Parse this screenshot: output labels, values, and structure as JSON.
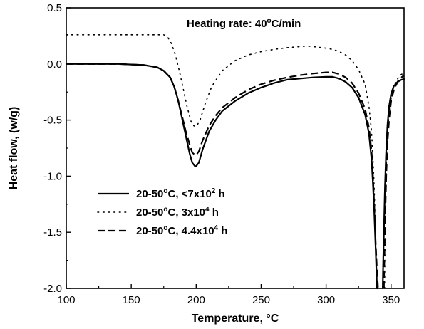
{
  "chart_data": {
    "type": "line",
    "title": "",
    "annotation": {
      "prefix": "Heating rate: 40",
      "sup": "o",
      "suffix": "C/min"
    },
    "xlabel": "Temperature, °C",
    "ylabel": "Heat flow, (w/g)",
    "xlim": [
      100,
      360
    ],
    "ylim": [
      -2.0,
      0.5
    ],
    "x_ticks": [
      100,
      150,
      200,
      250,
      300,
      350
    ],
    "y_ticks": [
      0.5,
      0.0,
      -0.5,
      -1.0,
      -1.5,
      -2.0
    ],
    "x_tick_labels": [
      "100",
      "150",
      "200",
      "250",
      "300",
      "350"
    ],
    "y_tick_labels": [
      "0.5",
      "0.0",
      "-0.5",
      "-1.0",
      "-1.5",
      "-2.0"
    ],
    "grid": false,
    "legend_position": "lower-left",
    "series": [
      {
        "legend": {
          "prefix": "20-50",
          "deg": "o",
          "mid": "C, <7x10",
          "exp": "2",
          "suffix": " h"
        },
        "style": "solid",
        "x": [
          100,
          120,
          140,
          160,
          170,
          175,
          180,
          183,
          186,
          189,
          192,
          195,
          197,
          199,
          200,
          202,
          205,
          210,
          215,
          220,
          230,
          240,
          250,
          260,
          270,
          280,
          290,
          300,
          305,
          310,
          315,
          320,
          325,
          330,
          333,
          335,
          336,
          337,
          338,
          338.6,
          339.2
        ],
        "y": [
          0.0,
          0.0,
          0.0,
          -0.01,
          -0.03,
          -0.06,
          -0.12,
          -0.2,
          -0.32,
          -0.48,
          -0.64,
          -0.8,
          -0.88,
          -0.91,
          -0.91,
          -0.88,
          -0.76,
          -0.6,
          -0.5,
          -0.42,
          -0.33,
          -0.26,
          -0.21,
          -0.17,
          -0.14,
          -0.13,
          -0.12,
          -0.115,
          -0.115,
          -0.13,
          -0.16,
          -0.21,
          -0.3,
          -0.45,
          -0.62,
          -0.85,
          -1.05,
          -1.3,
          -1.6,
          -1.8,
          -2.0
        ]
      },
      {
        "legend": {
          "prefix": "20-50",
          "deg": "o",
          "mid": "C,  3x10",
          "exp": "4",
          "suffix": " h"
        },
        "style": "dotted",
        "x": [
          100,
          120,
          140,
          160,
          170,
          175,
          178,
          181,
          184,
          187,
          190,
          193,
          196,
          198,
          200,
          203,
          207,
          212,
          220,
          230,
          240,
          250,
          260,
          270,
          280,
          285,
          290,
          300,
          305,
          310,
          315,
          320,
          325,
          330,
          333,
          335,
          336,
          337,
          338,
          339
        ],
        "y": [
          0.26,
          0.26,
          0.26,
          0.26,
          0.26,
          0.26,
          0.24,
          0.18,
          0.08,
          -0.06,
          -0.22,
          -0.38,
          -0.51,
          -0.55,
          -0.56,
          -0.5,
          -0.35,
          -0.2,
          -0.06,
          0.03,
          0.08,
          0.11,
          0.13,
          0.145,
          0.155,
          0.16,
          0.155,
          0.14,
          0.13,
          0.11,
          0.08,
          0.03,
          -0.05,
          -0.18,
          -0.38,
          -0.6,
          -0.82,
          -1.1,
          -1.5,
          -2.0
        ]
      },
      {
        "legend": {
          "prefix": "20-50",
          "deg": "o",
          "mid": "C,  4.4x10",
          "exp": "4",
          "suffix": " h"
        },
        "style": "dashed",
        "x": [
          100,
          120,
          140,
          160,
          170,
          175,
          180,
          183,
          186,
          189,
          192,
          195,
          197,
          199,
          200,
          202,
          205,
          210,
          215,
          220,
          230,
          240,
          250,
          260,
          270,
          280,
          290,
          300,
          305,
          310,
          315,
          320,
          325,
          330,
          333,
          335,
          336,
          337,
          338,
          339,
          340
        ],
        "y": [
          0.0,
          0.0,
          0.0,
          -0.01,
          -0.03,
          -0.06,
          -0.12,
          -0.2,
          -0.32,
          -0.46,
          -0.6,
          -0.72,
          -0.79,
          -0.81,
          -0.81,
          -0.78,
          -0.68,
          -0.55,
          -0.46,
          -0.39,
          -0.3,
          -0.23,
          -0.18,
          -0.145,
          -0.12,
          -0.1,
          -0.085,
          -0.075,
          -0.075,
          -0.09,
          -0.12,
          -0.17,
          -0.26,
          -0.4,
          -0.57,
          -0.78,
          -0.98,
          -1.25,
          -1.55,
          -1.8,
          -2.0
        ]
      },
      {
        "style": "solid",
        "x": [
          343.6,
          344.0,
          344.6,
          345.3,
          346.2,
          347.2,
          348.5,
          350,
          352,
          355,
          358,
          360
        ],
        "y": [
          -2.0,
          -1.75,
          -1.45,
          -1.1,
          -0.8,
          -0.55,
          -0.38,
          -0.27,
          -0.2,
          -0.16,
          -0.14,
          -0.135
        ]
      },
      {
        "style": "dotted",
        "x": [
          345.0,
          345.3,
          345.8,
          346.5,
          347.5,
          349,
          351,
          354,
          357,
          360
        ],
        "y": [
          -2.0,
          -1.6,
          -1.2,
          -0.85,
          -0.58,
          -0.38,
          -0.24,
          -0.15,
          -0.1,
          -0.08
        ]
      },
      {
        "style": "dashed",
        "x": [
          344.5,
          344.9,
          345.5,
          346.3,
          347.3,
          348.6,
          350.2,
          352.5,
          355.5,
          358,
          360
        ],
        "y": [
          -2.0,
          -1.7,
          -1.35,
          -1.0,
          -0.7,
          -0.48,
          -0.32,
          -0.22,
          -0.15,
          -0.12,
          -0.1
        ]
      }
    ]
  }
}
